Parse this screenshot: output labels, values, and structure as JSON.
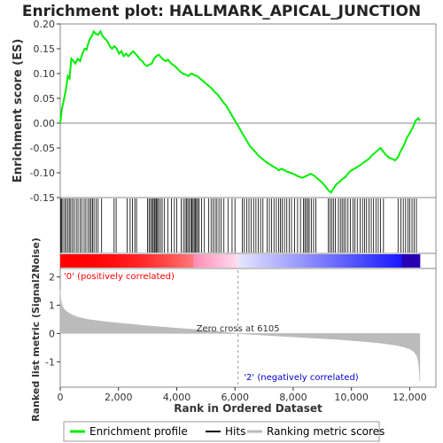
{
  "chart_data": {
    "type": "line",
    "title": "Enrichment plot: HALLMARK_APICAL_JUNCTION",
    "panels": {
      "enrichment": {
        "ylabel": "Enrichment score (ES)",
        "ylim": [
          -0.15,
          0.2
        ],
        "yticks": [
          "-0.15",
          "-0.10",
          "-0.05",
          "0.00",
          "0.05",
          "0.10",
          "0.15",
          "0.20"
        ],
        "ytick_values": [
          -0.15,
          -0.1,
          -0.05,
          0.0,
          0.05,
          0.1,
          0.15,
          0.2
        ],
        "series_x": [
          0,
          60,
          120,
          200,
          260,
          320,
          380,
          450,
          520,
          600,
          680,
          760,
          840,
          900,
          960,
          1020,
          1080,
          1150,
          1220,
          1300,
          1380,
          1460,
          1540,
          1620,
          1700,
          1780,
          1860,
          1940,
          2020,
          2100,
          2180,
          2260,
          2340,
          2420,
          2500,
          2580,
          2660,
          2740,
          2820,
          2900,
          2980,
          3060,
          3140,
          3220,
          3300,
          3380,
          3460,
          3540,
          3620,
          3700,
          3780,
          3860,
          3940,
          4020,
          4100,
          4200,
          4300,
          4400,
          4500,
          4600,
          4700,
          4800,
          4900,
          5000,
          5100,
          5200,
          5300,
          5400,
          5500,
          5600,
          5700,
          5800,
          5900,
          6000,
          6100,
          6200,
          6300,
          6400,
          6500,
          6600,
          6700,
          6800,
          6900,
          7000,
          7100,
          7200,
          7300,
          7400,
          7500,
          7600,
          7700,
          7800,
          7900,
          8000,
          8100,
          8200,
          8300,
          8400,
          8500,
          8600,
          8700,
          8800,
          8900,
          9000,
          9100,
          9200,
          9300,
          9400,
          9500,
          9600,
          9700,
          9800,
          9900,
          10000,
          10100,
          10200,
          10300,
          10400,
          10500,
          10600,
          10700,
          10800,
          10900,
          11000,
          11100,
          11200,
          11300,
          11400,
          11500,
          11600,
          11700,
          11800,
          11900,
          12000,
          12100,
          12200,
          12300,
          12350
        ],
        "series_y": [
          0.0,
          0.03,
          0.045,
          0.07,
          0.095,
          0.09,
          0.13,
          0.125,
          0.12,
          0.13,
          0.125,
          0.14,
          0.15,
          0.148,
          0.16,
          0.17,
          0.175,
          0.185,
          0.18,
          0.178,
          0.185,
          0.175,
          0.17,
          0.165,
          0.155,
          0.15,
          0.155,
          0.15,
          0.14,
          0.145,
          0.135,
          0.14,
          0.135,
          0.14,
          0.145,
          0.14,
          0.135,
          0.128,
          0.125,
          0.118,
          0.115,
          0.118,
          0.12,
          0.13,
          0.135,
          0.138,
          0.133,
          0.128,
          0.125,
          0.128,
          0.122,
          0.118,
          0.115,
          0.11,
          0.105,
          0.1,
          0.098,
          0.095,
          0.1,
          0.097,
          0.095,
          0.09,
          0.085,
          0.08,
          0.075,
          0.07,
          0.063,
          0.058,
          0.05,
          0.042,
          0.035,
          0.025,
          0.015,
          0.005,
          -0.005,
          -0.015,
          -0.025,
          -0.035,
          -0.045,
          -0.052,
          -0.058,
          -0.065,
          -0.07,
          -0.075,
          -0.08,
          -0.083,
          -0.087,
          -0.09,
          -0.095,
          -0.092,
          -0.095,
          -0.098,
          -0.1,
          -0.102,
          -0.105,
          -0.108,
          -0.11,
          -0.108,
          -0.105,
          -0.102,
          -0.105,
          -0.11,
          -0.115,
          -0.12,
          -0.127,
          -0.135,
          -0.14,
          -0.13,
          -0.122,
          -0.118,
          -0.112,
          -0.108,
          -0.1,
          -0.095,
          -0.092,
          -0.088,
          -0.085,
          -0.08,
          -0.076,
          -0.072,
          -0.065,
          -0.06,
          -0.055,
          -0.05,
          -0.058,
          -0.065,
          -0.07,
          -0.072,
          -0.075,
          -0.068,
          -0.055,
          -0.045,
          -0.03,
          -0.02,
          -0.01,
          0.005,
          0.01,
          0.005
        ]
      },
      "hits": {
        "positions": [
          15,
          45,
          90,
          150,
          200,
          260,
          310,
          360,
          420,
          480,
          550,
          610,
          680,
          740,
          820,
          880,
          950,
          1010,
          1060,
          1110,
          1160,
          1230,
          1300,
          1420,
          1850,
          1920,
          2300,
          2400,
          2480,
          2560,
          2620,
          3000,
          3050,
          3100,
          3150,
          3190,
          3230,
          3260,
          3300,
          3340,
          3380,
          3440,
          3500,
          3580,
          3700,
          3820,
          3920,
          4000,
          4150,
          4230,
          4290,
          4340,
          4380,
          4430,
          4480,
          4520,
          4560,
          4600,
          4640,
          4680,
          4720,
          4770,
          4850,
          4950,
          5100,
          5180,
          5250,
          5320,
          5380,
          5450,
          5520,
          5620,
          5760,
          5900,
          6000,
          6250,
          6320,
          6400,
          6480,
          6560,
          6640,
          6720,
          6800,
          6880,
          6960,
          7100,
          7180,
          7260,
          7340,
          7420,
          7500,
          7560,
          7620,
          7700,
          7780,
          7860,
          7940,
          8050,
          8150,
          8250,
          8350,
          8400,
          8450,
          8500,
          8550,
          8620,
          8700,
          8780,
          9200,
          9260,
          9320,
          9380,
          9450,
          9550,
          9620,
          9680,
          9740,
          9800,
          9880,
          9960,
          10050,
          10120,
          10200,
          10300,
          10380,
          10450,
          10520,
          10600,
          10680,
          10760,
          10840,
          10920,
          11000,
          11100,
          11600,
          11700,
          11780,
          11860,
          11940,
          12000,
          12080,
          12150,
          12230
        ]
      },
      "ranking": {
        "ylabel": "Ranked list metric (Signal2Noise)",
        "xlabel": "Rank in Ordered Dataset",
        "ylim": [
          -1.9,
          2.3
        ],
        "yticks": [
          "-1",
          "0",
          "1",
          "2"
        ],
        "ytick_values": [
          -1,
          0,
          1,
          2
        ],
        "metric_x": [
          0,
          20,
          60,
          120,
          200,
          300,
          450,
          600,
          800,
          1000,
          1300,
          1600,
          2000,
          2500,
          3000,
          3500,
          4000,
          4500,
          5000,
          5500,
          6105,
          6500,
          7000,
          7500,
          8000,
          8500,
          9000,
          9500,
          10000,
          10500,
          11000,
          11500,
          11800,
          12000,
          12150,
          12250,
          12300,
          12330,
          12350
        ],
        "metric_y": [
          1.55,
          1.2,
          1.0,
          0.88,
          0.8,
          0.72,
          0.64,
          0.58,
          0.53,
          0.49,
          0.45,
          0.41,
          0.37,
          0.32,
          0.27,
          0.23,
          0.19,
          0.15,
          0.11,
          0.07,
          0.0,
          -0.03,
          -0.06,
          -0.09,
          -0.12,
          -0.15,
          -0.18,
          -0.21,
          -0.25,
          -0.29,
          -0.34,
          -0.41,
          -0.48,
          -0.55,
          -0.65,
          -0.8,
          -1.0,
          -1.35,
          -1.7
        ],
        "zero_cross_label": "Zero cross at 6105",
        "zero_cross_value": 6105,
        "positive_label": "'0' (positively correlated)",
        "negative_label": "'2' (negatively correlated)"
      }
    },
    "xlim": [
      0,
      12900
    ],
    "xticks": [
      "0",
      "2,000",
      "4,000",
      "6,000",
      "8,000",
      "10,000",
      "12,000"
    ],
    "xtick_values": [
      0,
      2000,
      4000,
      6000,
      8000,
      10000,
      12000
    ],
    "n_genes": 12350,
    "legend": {
      "placement": "bottom",
      "items": [
        {
          "label": "Enrichment profile",
          "color": "#00ee00"
        },
        {
          "label": "Hits",
          "color": "#000000"
        },
        {
          "label": "Ranking metric scores",
          "color": "#bbbbbb"
        }
      ]
    },
    "colors": {
      "profile": "#00ee00",
      "positive": "#ff0000",
      "negative": "#0000ff",
      "metric_fill": "#bbbbbb",
      "zero_line": "#888888",
      "positive_text": "#ff0000",
      "negative_text": "#0000cc"
    }
  }
}
